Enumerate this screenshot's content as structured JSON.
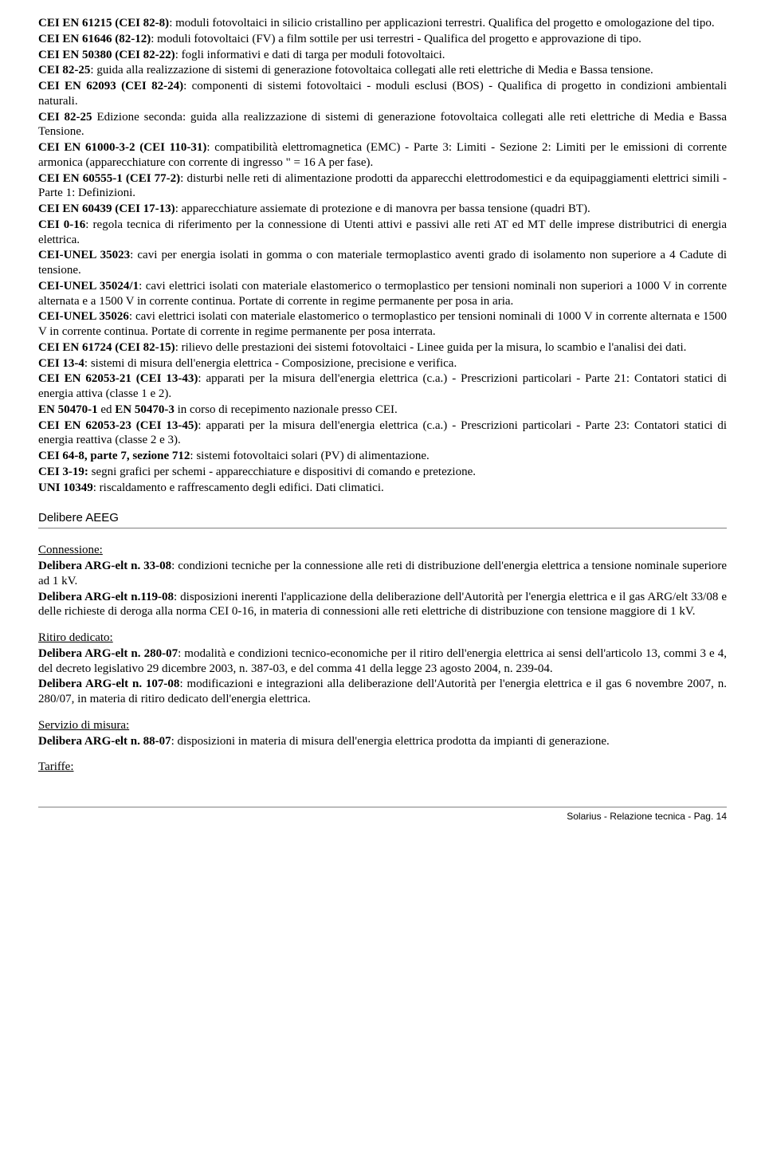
{
  "norms": [
    {
      "code": "CEI EN 61215 (CEI 82-8)",
      "text": ": moduli fotovoltaici in silicio cristallino per applicazioni terrestri. Qualifica del progetto e omologazione del tipo."
    },
    {
      "code": "CEI EN 61646 (82-12)",
      "text": ": moduli fotovoltaici (FV) a film sottile per usi terrestri - Qualifica del progetto e approvazione di tipo."
    },
    {
      "code": "CEI EN 50380 (CEI 82-22)",
      "text": ": fogli informativi e dati di targa per moduli fotovoltaici."
    },
    {
      "code": "CEI 82-25",
      "text": ": guida alla realizzazione di sistemi di generazione fotovoltaica collegati alle reti elettriche di Media e Bassa tensione."
    },
    {
      "code": "CEI EN 62093 (CEI 82-24)",
      "text": ": componenti di sistemi fotovoltaici - moduli esclusi (BOS) - Qualifica di progetto in condizioni ambientali naturali."
    },
    {
      "code": "CEI 82-25",
      "text": " Edizione seconda: guida alla realizzazione di sistemi di generazione fotovoltaica collegati alle reti elettriche di Media e Bassa Tensione."
    },
    {
      "code": "CEI EN 61000-3-2 (CEI 110-31)",
      "text": ": compatibilità elettromagnetica (EMC) - Parte 3: Limiti - Sezione 2: Limiti per le emissioni di corrente armonica (apparecchiature con corrente di ingresso \" = 16 A per fase)."
    },
    {
      "code": "CEI EN 60555-1 (CEI 77-2)",
      "text": ": disturbi nelle reti di alimentazione prodotti da apparecchi elettrodomestici e da equipaggiamenti elettrici simili - Parte 1: Definizioni."
    },
    {
      "code": "CEI EN 60439 (CEI 17-13)",
      "text": ": apparecchiature assiemate di protezione e di manovra per bassa tensione (quadri BT)."
    },
    {
      "code": "CEI 0-16",
      "text": ": regola tecnica di riferimento per la connessione di Utenti attivi e passivi alle reti AT ed MT delle imprese distributrici di energia elettrica."
    },
    {
      "code": "CEI-UNEL 35023",
      "text": ": cavi per energia isolati in gomma o con materiale termoplastico aventi grado di isolamento non superiore a 4 Cadute di tensione."
    },
    {
      "code": "CEI-UNEL 35024/1",
      "text": ": cavi elettrici isolati con materiale elastomerico o termoplastico per tensioni nominali non superiori a 1000 V in corrente alternata e a 1500 V in corrente continua. Portate di corrente in regime permanente per posa in aria."
    },
    {
      "code": "CEI-UNEL 35026",
      "text": ": cavi elettrici isolati con materiale elastomerico o termoplastico per tensioni nominali di 1000 V in corrente alternata e 1500 V in corrente continua. Portate di corrente in regime permanente per posa interrata."
    },
    {
      "code": "CEI EN 61724 (CEI 82-15)",
      "text": ": rilievo delle prestazioni dei sistemi fotovoltaici - Linee guida per la misura, lo scambio e l'analisi dei dati."
    },
    {
      "code": "CEI 13-4",
      "text": ": sistemi di misura dell'energia elettrica - Composizione, precisione e verifica."
    },
    {
      "code": "CEI EN 62053-21 (CEI 13-43)",
      "text": ": apparati per la misura dell'energia elettrica (c.a.) - Prescrizioni particolari - Parte 21: Contatori statici di energia attiva (classe 1 e 2)."
    },
    {
      "code": "EN 50470-1",
      "text": " ed ",
      "code2": "EN 50470-3",
      "text2": " in corso di recepimento nazionale presso CEI."
    },
    {
      "code": "CEI EN 62053-23 (CEI 13-45)",
      "text": ": apparati per la misura dell'energia elettrica (c.a.) - Prescrizioni particolari - Parte 23: Contatori statici di energia reattiva (classe 2 e 3)."
    },
    {
      "code": "CEI 64-8, parte 7, sezione 712",
      "text": ": sistemi fotovoltaici solari (PV) di alimentazione."
    },
    {
      "code": "CEI 3-19:",
      "text": " segni grafici per schemi - apparecchiature e dispositivi di comando e pretezione."
    },
    {
      "code": "UNI 10349",
      "text": ": riscaldamento e raffrescamento degli edifici. Dati climatici."
    }
  ],
  "section_heading": "Delibere AEEG",
  "groups": [
    {
      "title": "Connessione:",
      "items": [
        {
          "code": "Delibera ARG-elt n. 33-08",
          "text": ": condizioni tecniche per la connessione alle reti di distribuzione dell'energia elettrica a tensione nominale superiore ad 1 kV."
        },
        {
          "code": "Delibera ARG-elt n.119-08",
          "text": ": disposizioni inerenti l'applicazione della deliberazione dell'Autorità per l'energia elettrica e il gas ARG/elt 33/08 e delle richieste di deroga alla norma CEI 0-16, in materia di connessioni alle reti elettriche di distribuzione con tensione maggiore di 1 kV."
        }
      ]
    },
    {
      "title": "Ritiro dedicato:",
      "items": [
        {
          "code": "Delibera ARG-elt n. 280-07",
          "text": ": modalità e condizioni tecnico-economiche per il ritiro dell'energia elettrica ai sensi dell'articolo 13, commi 3 e 4, del decreto legislativo 29 dicembre 2003, n. 387-03, e del comma 41 della legge 23 agosto 2004, n. 239-04."
        },
        {
          "code": "Delibera ARG-elt n. 107-08",
          "text": ": modificazioni e integrazioni alla deliberazione dell'Autorità per l'energia elettrica e il gas 6 novembre 2007, n. 280/07, in materia di ritiro dedicato dell'energia elettrica."
        }
      ]
    },
    {
      "title": "Servizio di misura:",
      "items": [
        {
          "code": "Delibera ARG-elt n. 88-07",
          "text": ": disposizioni in materia di misura dell'energia elettrica prodotta da impianti di generazione."
        }
      ]
    },
    {
      "title": "Tariffe:",
      "items": []
    }
  ],
  "footer": "Solarius - Relazione tecnica - Pag. 14"
}
